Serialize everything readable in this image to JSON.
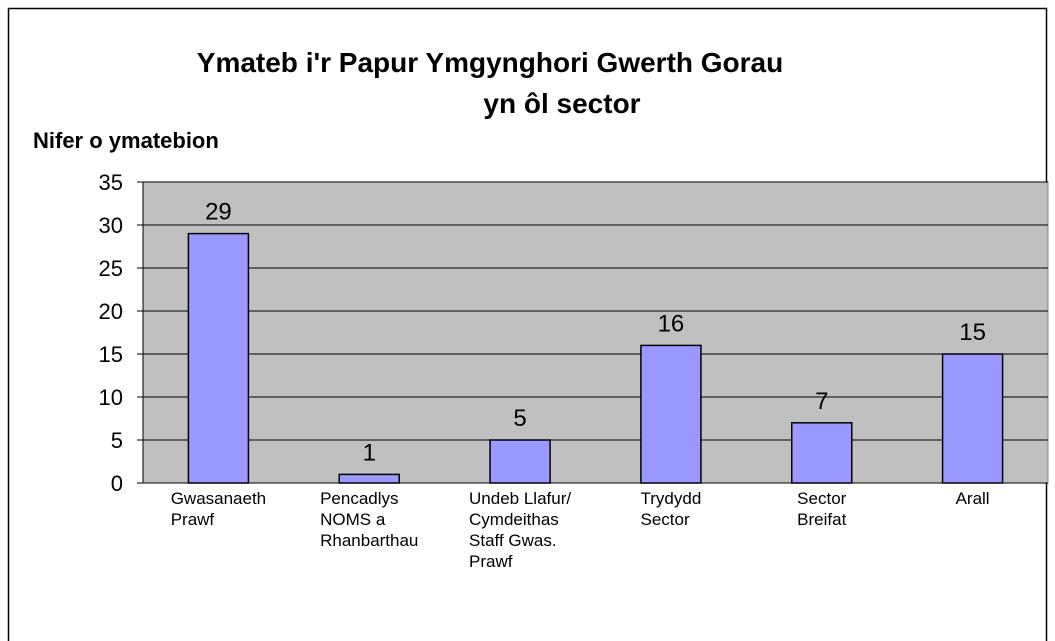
{
  "chart_data": {
    "type": "bar",
    "title": [
      "Ymateb i'r Papur Ymgynghori Gwerth Gorau",
      "yn ôl sector"
    ],
    "y_label": "Nifer o ymatebion",
    "categories": [
      [
        "Gwasanaeth",
        "Prawf"
      ],
      [
        "Pencadlys",
        "NOMS a",
        "Rhanbarthau"
      ],
      [
        "Undeb Llafur/",
        "Cymdeithas",
        "Staff Gwas.",
        "Prawf"
      ],
      [
        "Trydydd",
        "Sector"
      ],
      [
        "Sector",
        "Breifat"
      ],
      [
        "Arall"
      ]
    ],
    "values": [
      29,
      1,
      5,
      16,
      7,
      15
    ],
    "color": "#9999ff",
    "ylim": [
      0,
      35
    ],
    "yticks": [
      0,
      5,
      10,
      15,
      20,
      25,
      30,
      35
    ],
    "grid": true
  }
}
